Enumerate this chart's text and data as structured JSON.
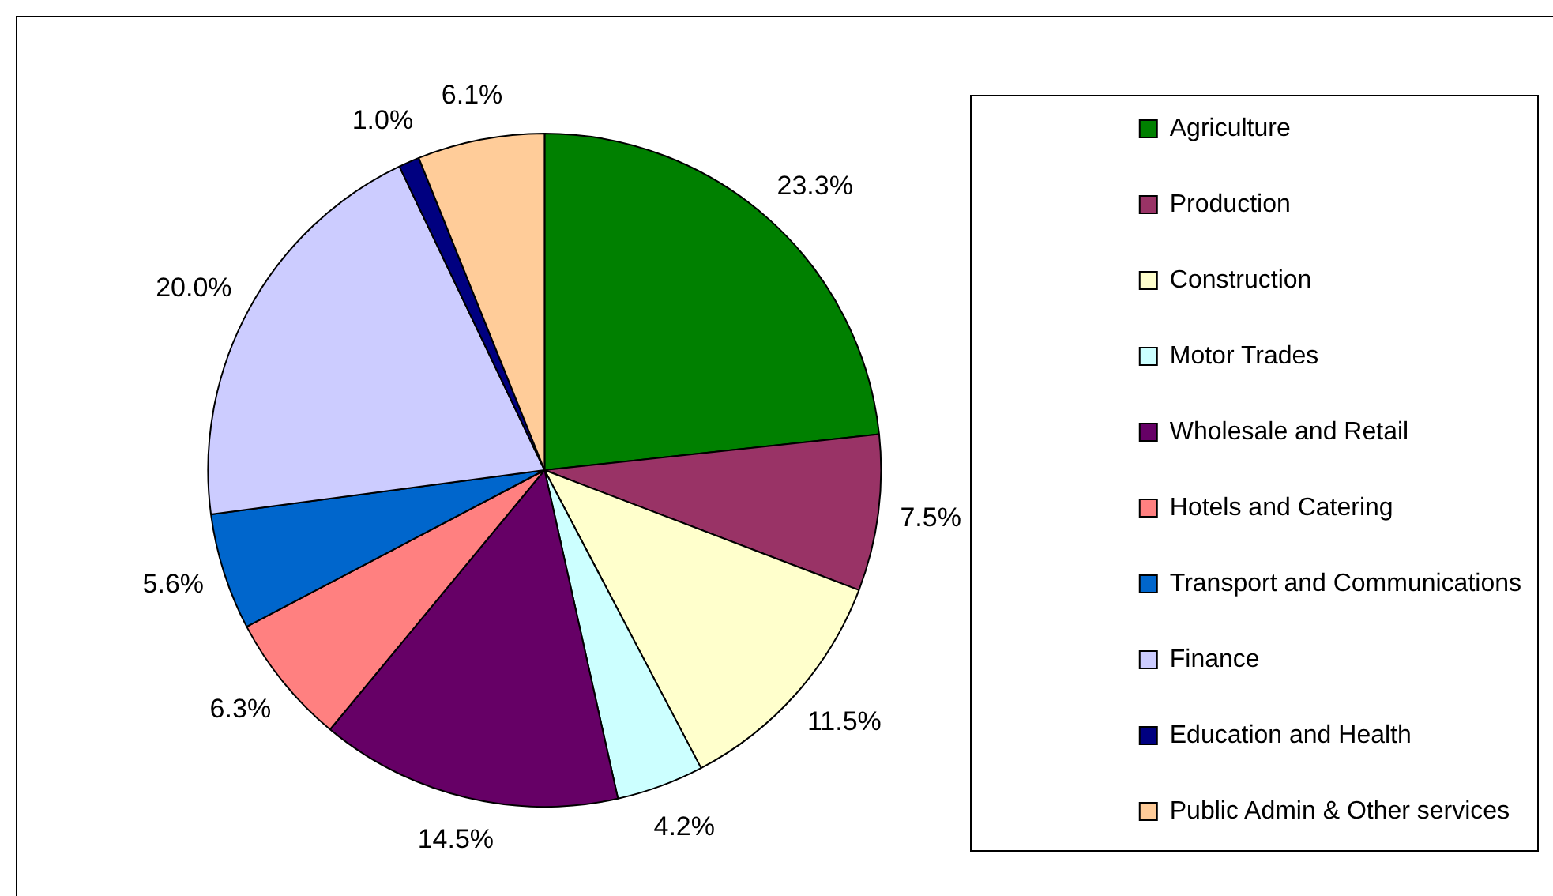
{
  "chart_data": {
    "type": "pie",
    "categories": [
      "Agriculture",
      "Production",
      "Construction",
      "Motor Trades",
      "Wholesale and Retail",
      "Hotels and Catering",
      "Transport and Communications",
      "Finance",
      "Education and Health",
      "Public Admin & Other services"
    ],
    "values": [
      23.3,
      7.5,
      11.5,
      4.2,
      14.5,
      6.3,
      5.6,
      20.0,
      1.0,
      6.1
    ],
    "value_labels": [
      "23.3%",
      "7.5%",
      "11.5%",
      "4.2%",
      "14.5%",
      "6.3%",
      "5.6%",
      "20.0%",
      "1.0%",
      "6.1%"
    ],
    "colors": [
      "#008000",
      "#993366",
      "#ffffcc",
      "#ccffff",
      "#660066",
      "#ff8080",
      "#0066cc",
      "#ccccff",
      "#000080",
      "#ffcc99"
    ],
    "legend": "right"
  }
}
